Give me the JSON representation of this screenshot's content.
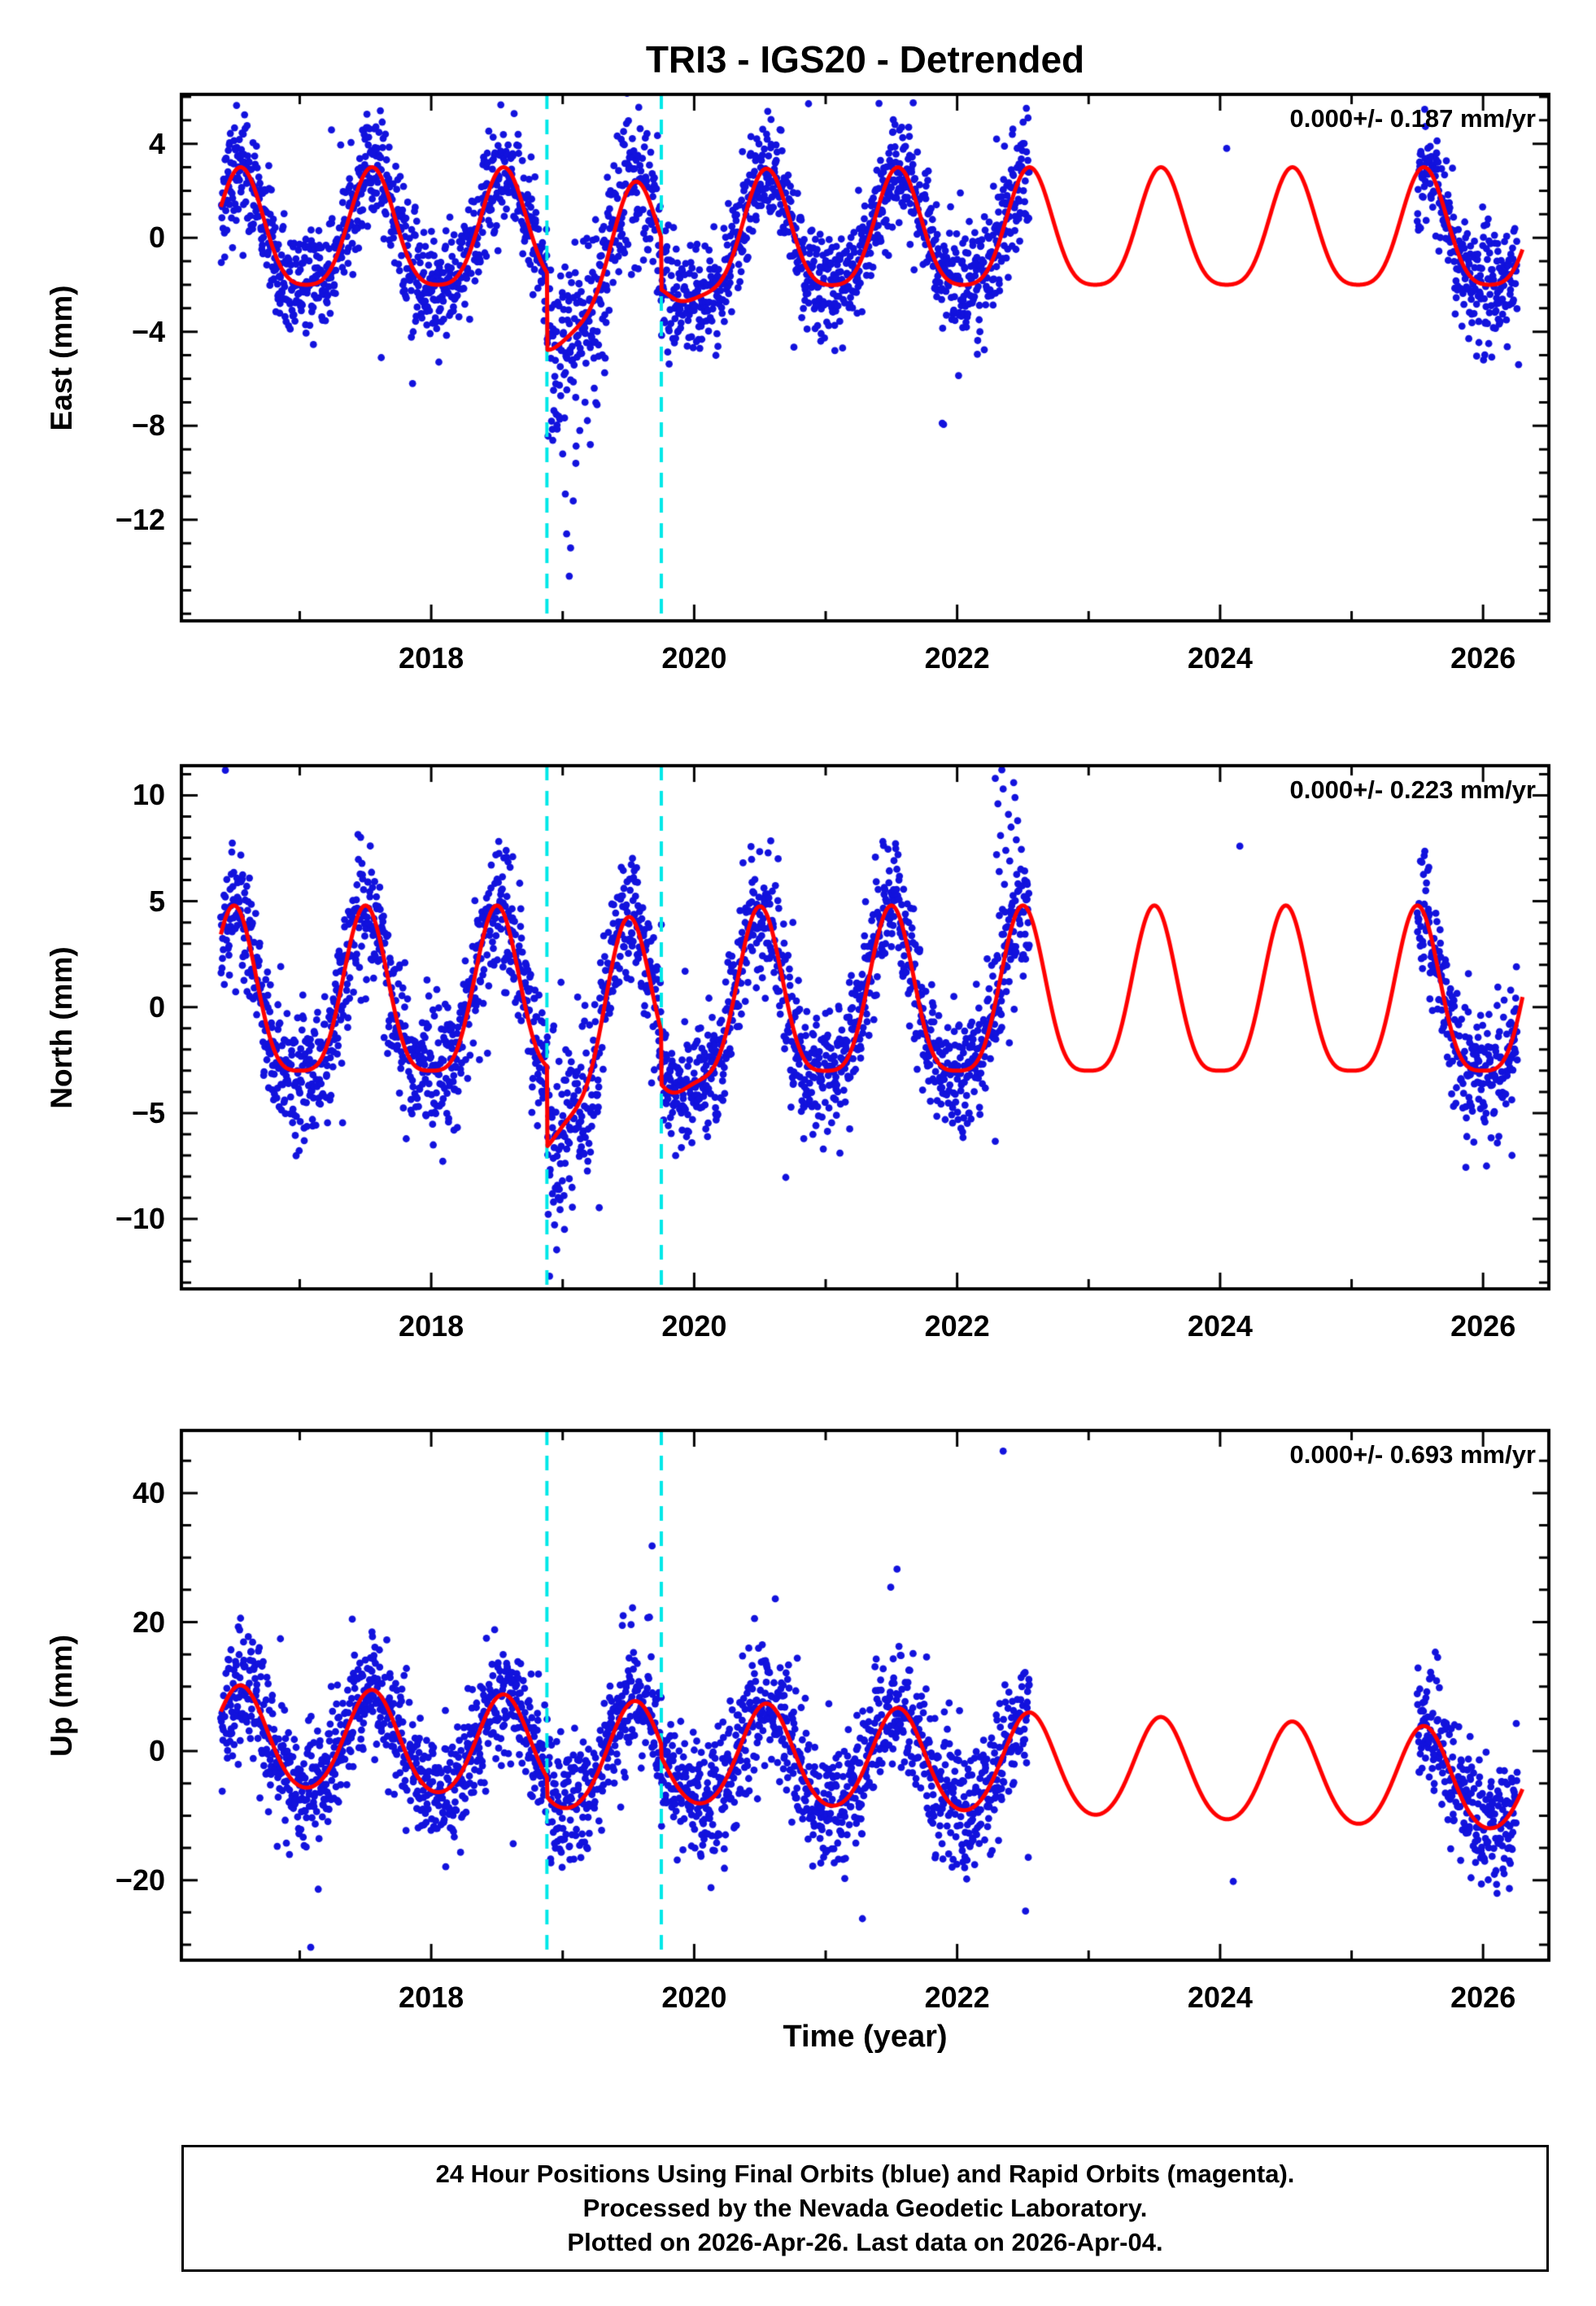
{
  "title": "TRI3 - IGS20 - Detrended",
  "xlabel": "Time (year)",
  "footer": {
    "line1": "24 Hour Positions Using Final Orbits (blue) and Rapid Orbits (magenta).",
    "line2": "Processed by the Nevada Geodetic Laboratory.",
    "line3": "Plotted on 2026-Apr-26. Last data on 2026-Apr-04."
  },
  "colors": {
    "points": "#1212dd",
    "model": "#ff0000",
    "event_line": "#00e8e8",
    "frame": "#000000",
    "background": "#ffffff"
  },
  "chart_data": {
    "type": "scatter",
    "title": "TRI3 - IGS20 - Detrended",
    "xlabel": "Time (year)",
    "x_range": [
      2016.1,
      2026.5
    ],
    "x_major_ticks": [
      2018,
      2020,
      2022,
      2024,
      2026
    ],
    "x_minor_step": 1,
    "event_lines_x": [
      2018.88,
      2019.75
    ],
    "data_span": [
      [
        2016.4,
        2022.55
      ],
      [
        2025.5,
        2026.26
      ]
    ],
    "model_span": [
      2016.4,
      2026.3
    ],
    "legend": "blue dots = daily 24-hour positions (final orbits), red line = seasonal model, cyan dashed = equipment/event epochs",
    "panels": [
      {
        "name": "East",
        "ylabel": "East (mm)",
        "annotation": "0.000+/- 0.187 mm/yr",
        "rate": "0.000",
        "rate_uncertainty": "0.187",
        "rate_units": "mm/yr",
        "ylim": [
          -16.3,
          6.1
        ],
        "yticks": [
          4,
          0,
          -4,
          -8,
          -12
        ],
        "y_minor_step": 1,
        "seasonal": {
          "annual_amp": 2.5,
          "semiannual_amp": 0.5,
          "phase": 0.55
        },
        "noise_sigma": 1.15,
        "noisy_window": [
          2018.88,
          2019.8
        ],
        "events": [
          {
            "t": 2018.88,
            "step": -3.3,
            "tau": 0.4
          },
          {
            "t": 2019.75,
            "step": -2.2,
            "tau": 0.15
          }
        ],
        "outliers": [
          [
            2018.94,
            -5.9
          ],
          [
            2018.97,
            -7.6
          ],
          [
            2019.0,
            -9.2
          ],
          [
            2019.02,
            -10.9
          ],
          [
            2019.03,
            -12.6
          ],
          [
            2019.05,
            -14.4
          ],
          [
            2019.06,
            -13.2
          ],
          [
            2019.08,
            -11.2
          ],
          [
            2019.1,
            -9.6
          ],
          [
            2019.13,
            -8.2
          ],
          [
            2019.17,
            -7.0
          ],
          [
            2019.21,
            -8.8
          ],
          [
            2019.24,
            -6.4
          ],
          [
            2017.62,
            -5.1
          ],
          [
            2021.07,
            -4.8
          ],
          [
            2022.3,
            4.2
          ],
          [
            2022.36,
            3.9
          ],
          [
            2022.42,
            4.4
          ],
          [
            2024.05,
            3.8
          ],
          [
            2026.27,
            -5.4
          ]
        ]
      },
      {
        "name": "North",
        "ylabel": "North (mm)",
        "annotation": "0.000+/- 0.223 mm/yr",
        "rate": "0.000",
        "rate_uncertainty": "0.223",
        "rate_units": "mm/yr",
        "ylim": [
          -13.3,
          11.4
        ],
        "yticks": [
          10,
          5,
          0,
          -5,
          -10
        ],
        "y_minor_step": 1,
        "seasonal": {
          "annual_amp": 3.9,
          "semiannual_amp": 0.9,
          "phase": 0.5
        },
        "noise_sigma": 1.5,
        "noisy_window": [
          2018.88,
          2019.3
        ],
        "events": [
          {
            "t": 2018.88,
            "step": -3.8,
            "tau": 0.32
          },
          {
            "t": 2019.75,
            "step": -2.5,
            "tau": 0.15
          }
        ],
        "outliers": [
          [
            2018.9,
            -12.7
          ],
          [
            2018.93,
            -9.2
          ],
          [
            2018.96,
            -8.6
          ],
          [
            2019.01,
            -8.9
          ],
          [
            2019.05,
            -8.1
          ],
          [
            2022.29,
            10.8
          ],
          [
            2022.31,
            9.6
          ],
          [
            2022.33,
            8.1
          ],
          [
            2022.34,
            11.2
          ],
          [
            2022.35,
            10.3
          ],
          [
            2022.37,
            7.4
          ],
          [
            2022.39,
            9.1
          ],
          [
            2022.41,
            8.5
          ],
          [
            2022.43,
            10.6
          ],
          [
            2022.45,
            7.9
          ],
          [
            2022.32,
            6.4
          ],
          [
            2022.36,
            5.8
          ],
          [
            2022.4,
            6.9
          ],
          [
            2022.44,
            9.9
          ],
          [
            2022.46,
            8.8
          ],
          [
            2022.3,
            7.2
          ],
          [
            2018.57,
            7.4
          ],
          [
            2018.62,
            7.1
          ],
          [
            2024.15,
            7.6
          ],
          [
            2026.12,
            -6.1
          ],
          [
            2026.22,
            -7.0
          ]
        ]
      },
      {
        "name": "Up",
        "ylabel": "Up (mm)",
        "annotation": "0.000+/- 0.693 mm/yr",
        "rate": "0.000",
        "rate_uncertainty": "0.693",
        "rate_units": "mm/yr",
        "ylim": [
          -32.4,
          49.7
        ],
        "yticks": [
          40,
          20,
          0,
          -20
        ],
        "y_minor_step": 5,
        "seasonal": {
          "annual_amp": 7.75,
          "semiannual_amp": 0.75,
          "phase": 0.55
        },
        "drift": {
          "t0": 2016.4,
          "offset": 1.8,
          "rate_mm_per_yr": -0.7
        },
        "noise_sigma": 4.7,
        "events": [
          {
            "t": 2018.88,
            "step": -3.0,
            "tau": 0.3
          },
          {
            "t": 2019.75,
            "step": -2.0,
            "tau": 0.15
          }
        ],
        "outliers": [
          [
            2022.35,
            46.5
          ],
          [
            2019.68,
            31.8
          ],
          [
            2016.55,
            20.6
          ],
          [
            2019.46,
            21.0
          ],
          [
            2019.52,
            19.6
          ],
          [
            2018.42,
            17.5
          ],
          [
            2020.55,
            13.5
          ],
          [
            2024.1,
            -20.2
          ],
          [
            2026.16,
            -19.0
          ],
          [
            2026.2,
            -21.3
          ]
        ]
      }
    ]
  }
}
